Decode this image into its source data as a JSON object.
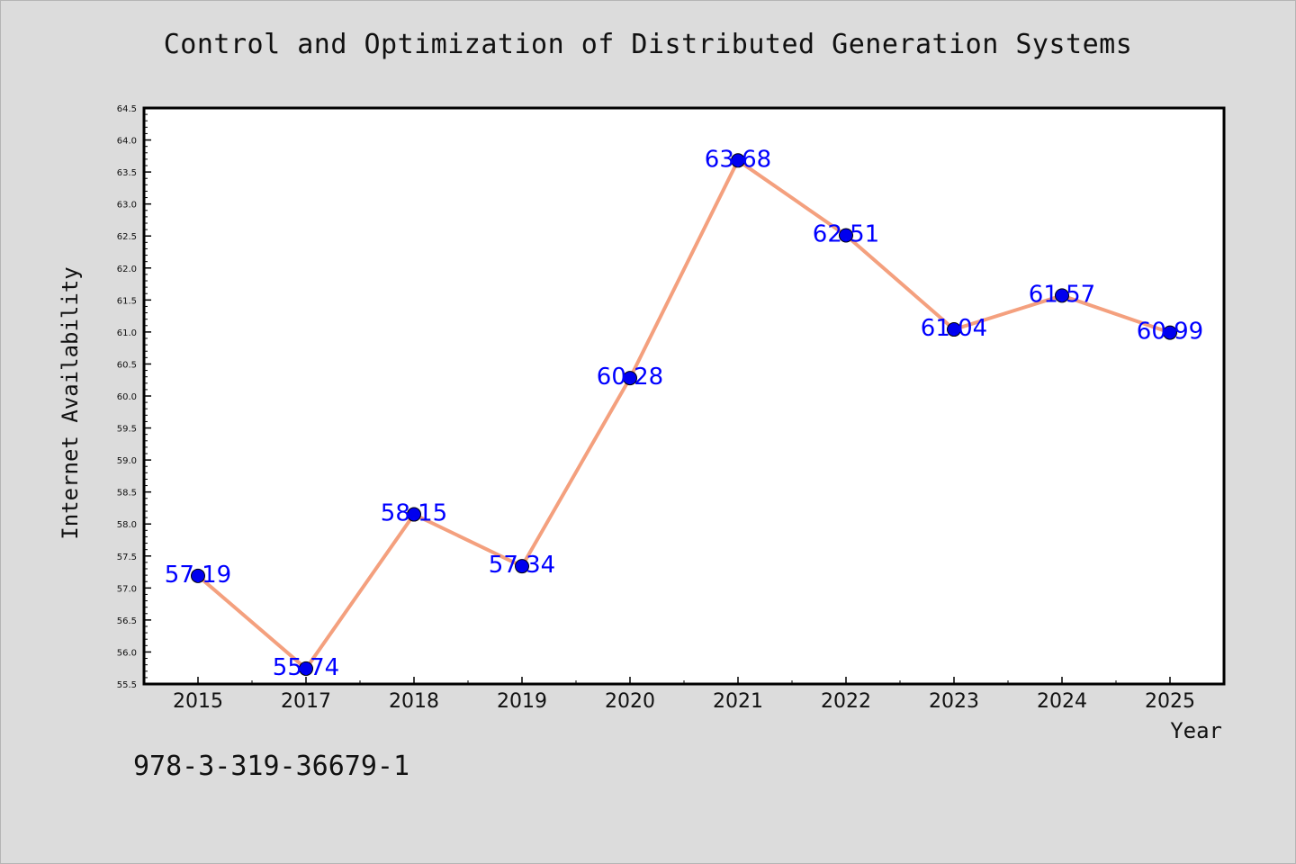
{
  "chart_data": {
    "type": "line",
    "title": "Control and Optimization of Distributed Generation Systems",
    "xlabel": "Year",
    "ylabel": "Internet Availability",
    "categories": [
      "2015",
      "2017",
      "2018",
      "2019",
      "2020",
      "2021",
      "2022",
      "2023",
      "2024",
      "2025"
    ],
    "series": [
      {
        "values": [
          57.19,
          55.74,
          58.15,
          57.34,
          60.28,
          63.68,
          62.51,
          61.04,
          61.57,
          60.99
        ],
        "data_labels": [
          "57.19",
          "55.74",
          "58.15",
          "57.34",
          "60.28",
          "63.68",
          "62.51",
          "61.04",
          "61.57",
          "60.99"
        ],
        "line_color": "#f4a07e",
        "marker_color": "#0000ee"
      }
    ],
    "ylim": [
      55.5,
      64.5
    ],
    "yticks": [
      "55.5",
      "56.0",
      "56.5",
      "57.0",
      "57.5",
      "58.0",
      "58.5",
      "59.0",
      "59.5",
      "60.0",
      "60.5",
      "61.0",
      "61.5",
      "62.0",
      "62.5",
      "63.0",
      "63.5",
      "64.0",
      "64.5"
    ],
    "grid": false,
    "legend": "none",
    "label_color": "#0000ff"
  },
  "footer": {
    "code": "978-3-319-36679-1"
  }
}
